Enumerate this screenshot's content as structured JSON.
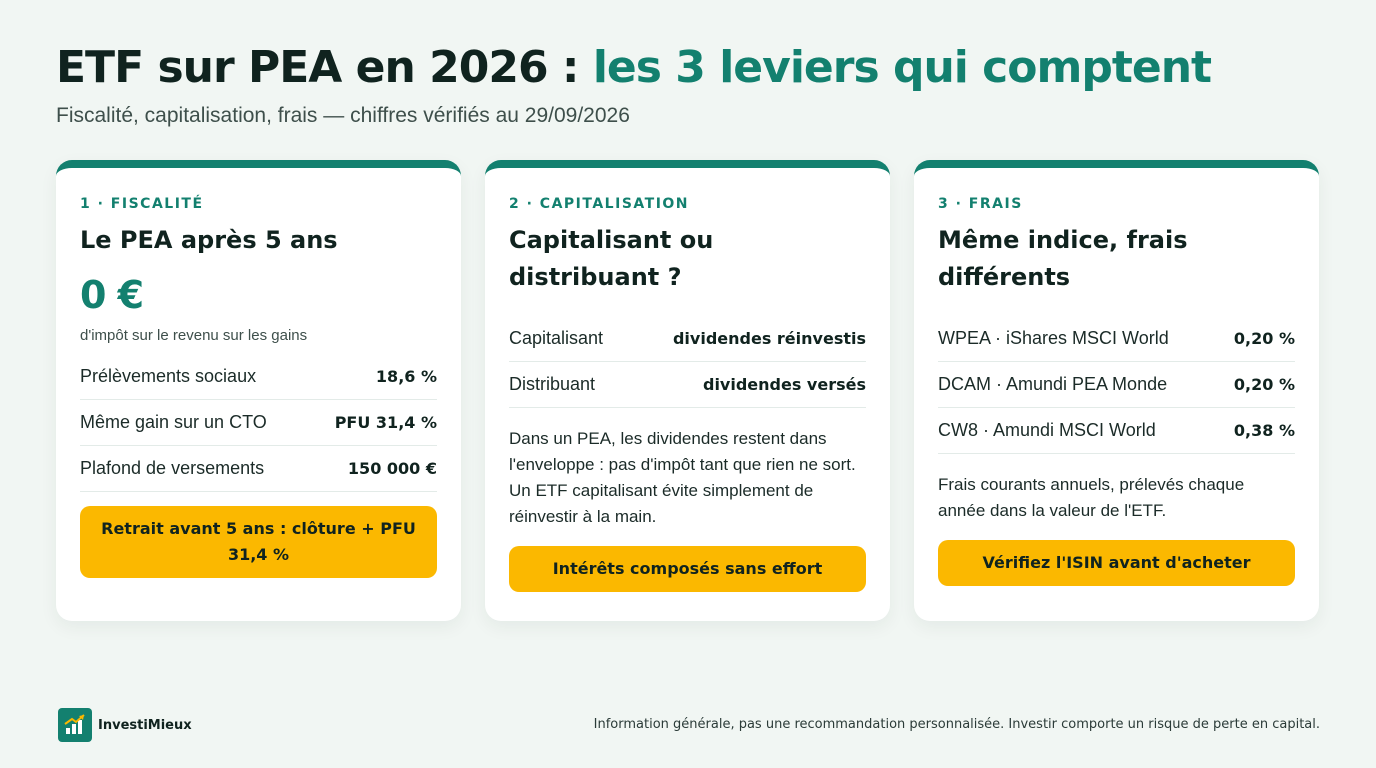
{
  "header": {
    "title_main": "ETF sur PEA en 2026 :",
    "title_accent": "les 3 leviers qui comptent",
    "subtitle": "Fiscalité, capitalisation, frais — chiffres vérifiés au 29/09/2026"
  },
  "cards": [
    {
      "kicker": "1 · FISCALITÉ",
      "title": "Le PEA après 5 ans",
      "big_value": "0 €",
      "big_note": "d'impôt sur le revenu sur les gains",
      "rows": [
        {
          "label": "Prélèvements sociaux",
          "value": "18,6 %"
        },
        {
          "label": "Même gain sur un CTO",
          "value": "PFU 31,4 %"
        },
        {
          "label": "Plafond de versements",
          "value": "150 000 €"
        }
      ],
      "cta": "Retrait avant 5 ans : clôture + PFU 31,4 %"
    },
    {
      "kicker": "2 · CAPITALISATION",
      "title": "Capitalisant ou distribuant ?",
      "rows": [
        {
          "label": "Capitalisant",
          "value": "dividendes réinvestis"
        },
        {
          "label": "Distribuant",
          "value": "dividendes versés"
        }
      ],
      "paragraph": "Dans un PEA, les dividendes restent dans l'enveloppe : pas d'impôt tant que rien ne sort. Un ETF capitalisant évite simplement de réinvestir à la main.",
      "cta": "Intérêts composés sans effort"
    },
    {
      "kicker": "3 · FRAIS",
      "title": "Même indice, frais différents",
      "rows": [
        {
          "label": "WPEA · iShares MSCI World",
          "value": "0,20 %"
        },
        {
          "label": "DCAM · Amundi PEA Monde",
          "value": "0,20 %"
        },
        {
          "label": "CW8 · Amundi MSCI World",
          "value": "0,38 %"
        }
      ],
      "paragraph": "Frais courants annuels, prélevés chaque année dans la valeur de l'ETF.",
      "cta": "Vérifiez l'ISIN avant d'acheter"
    }
  ],
  "footer": {
    "brand": "InvestiMieux",
    "logo_icon": "trend-up-chart-icon",
    "disclaimer": "Information générale, pas une recommandation personnalisée. Investir comporte un risque de perte en capital."
  },
  "colors": {
    "accent": "#13806f",
    "cta": "#fbb800",
    "background": "#f1f6f3"
  }
}
